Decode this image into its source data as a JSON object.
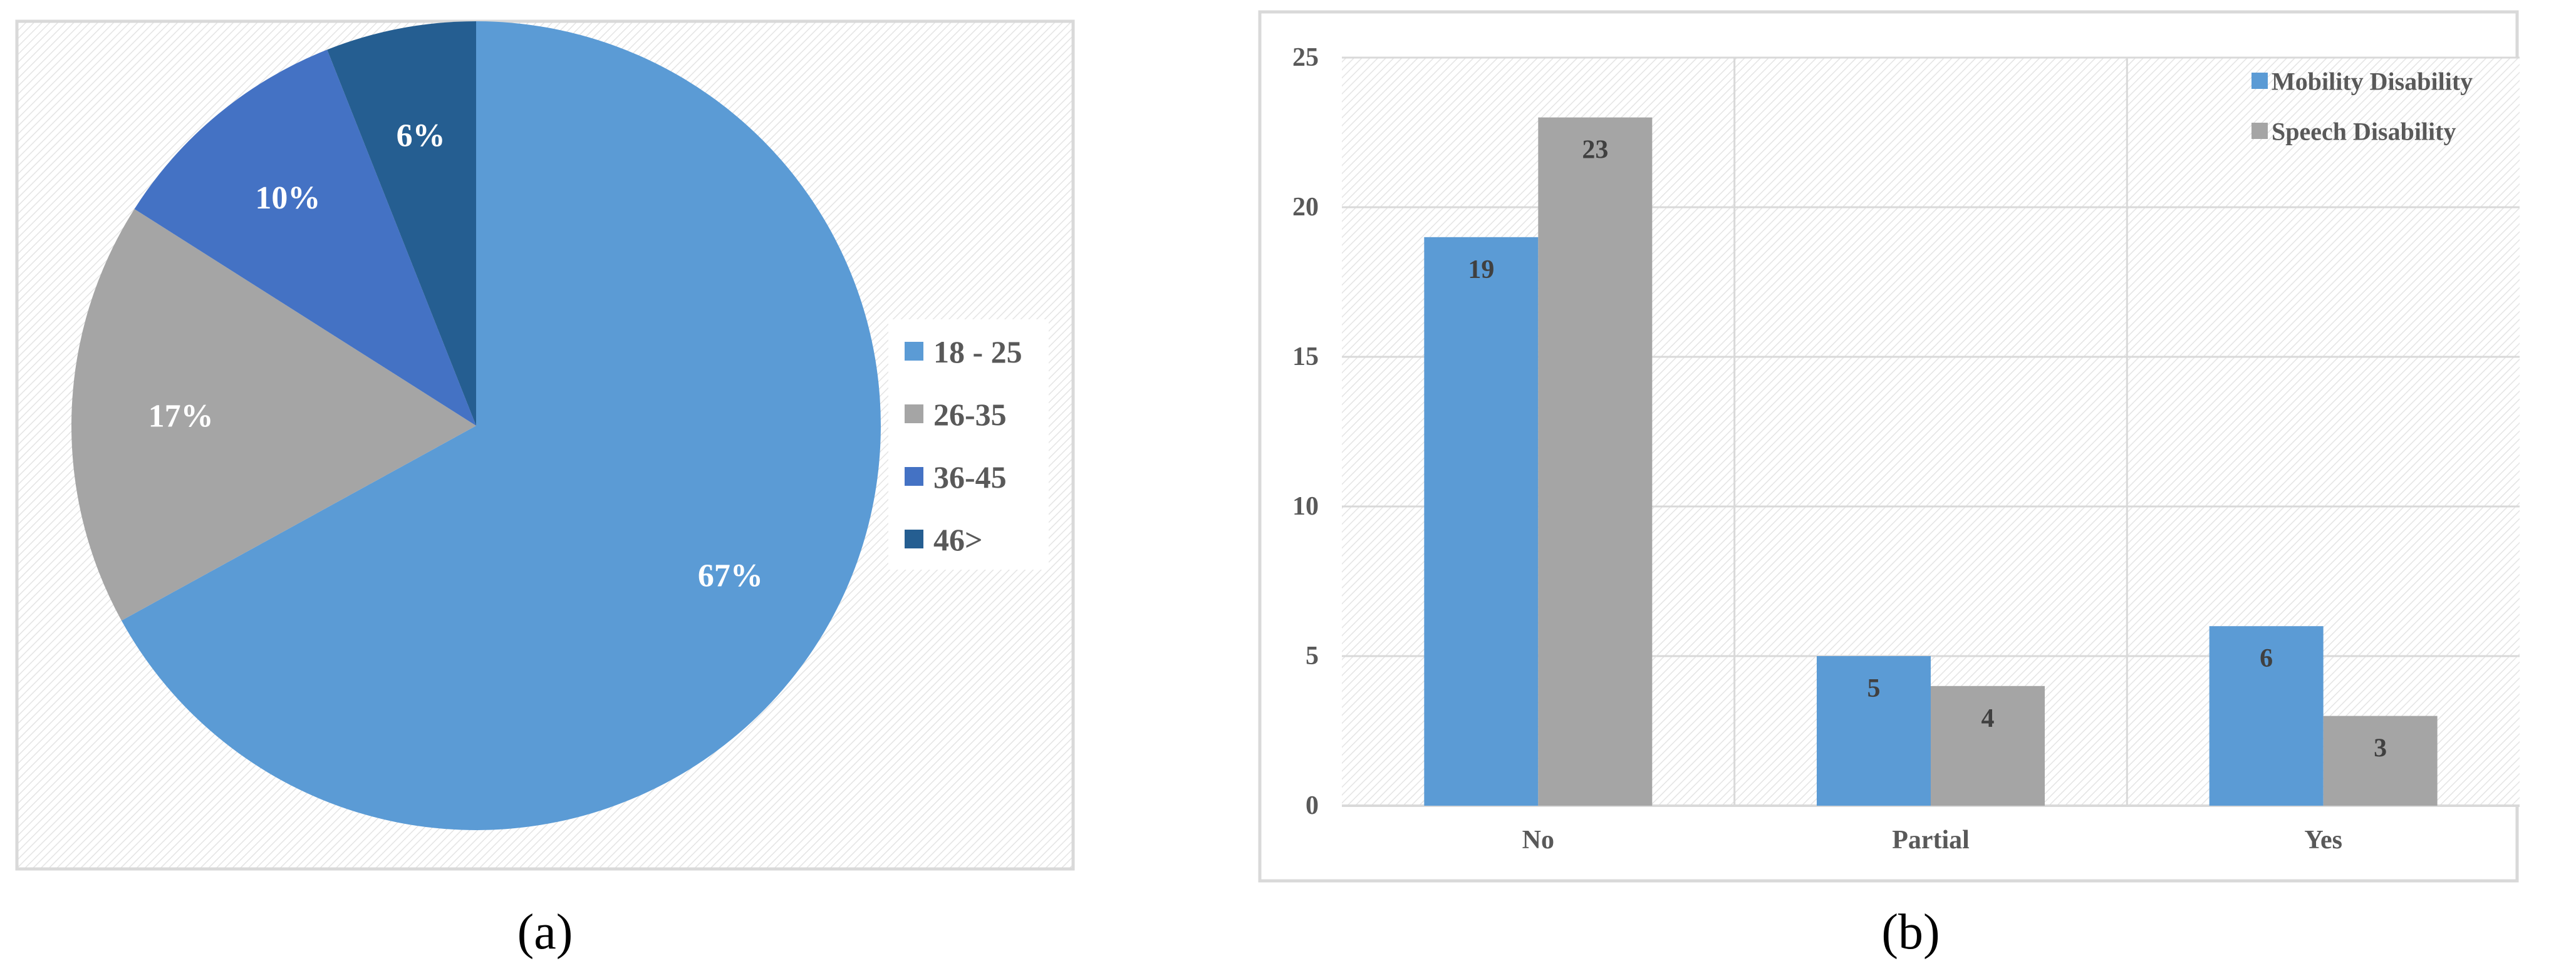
{
  "panels": {
    "a": {
      "caption": "(a)"
    },
    "b": {
      "caption": "(b)"
    }
  },
  "chart_data": [
    {
      "type": "pie",
      "categories": [
        "18 - 25",
        "26-35",
        "36-45",
        "46>"
      ],
      "values": [
        67,
        17,
        10,
        6
      ],
      "data_labels": [
        "67%",
        "17%",
        "10%",
        "6%"
      ],
      "colors": [
        "#5B9BD5",
        "#A5A5A5",
        "#4472C4",
        "#255E91"
      ],
      "legend": "right",
      "start_angle_deg": 0,
      "direction": "clockwise"
    },
    {
      "type": "bar",
      "categories": [
        "No",
        "Partial",
        "Yes"
      ],
      "series": [
        {
          "name": "Mobility Disability",
          "values": [
            19,
            5,
            6
          ],
          "color": "#5B9BD5"
        },
        {
          "name": "Speech Disability",
          "values": [
            23,
            4,
            3
          ],
          "color": "#A5A5A5"
        }
      ],
      "ylim": [
        0,
        25
      ],
      "yticks": [
        0,
        5,
        10,
        15,
        20,
        25
      ],
      "grid": true,
      "legend": "top-right",
      "data_labels": true
    }
  ]
}
